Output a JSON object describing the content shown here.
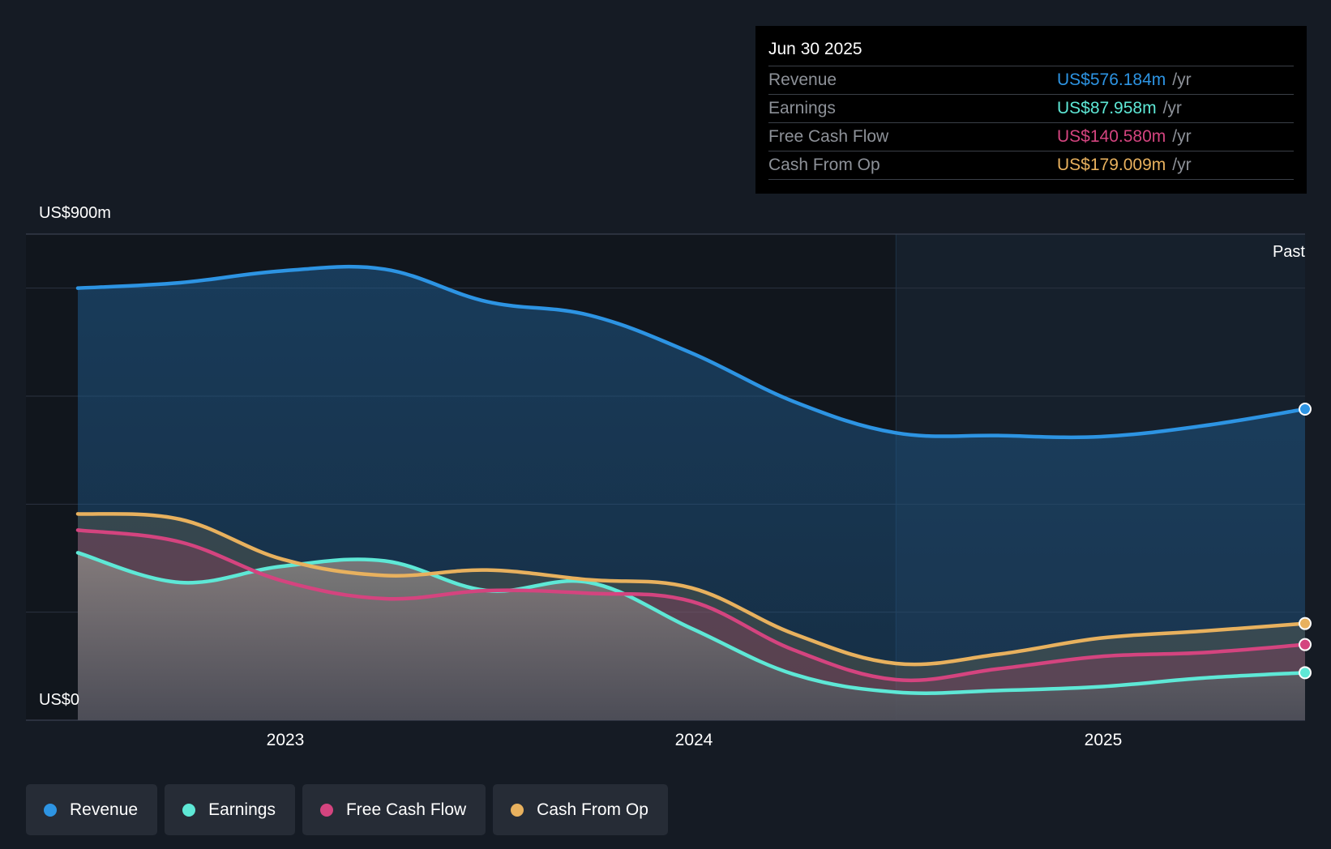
{
  "tooltip": {
    "date": "Jun 30 2025",
    "rows": [
      {
        "label": "Revenue",
        "value": "US$576.184m",
        "unit": "/yr",
        "color": "#2d94e3"
      },
      {
        "label": "Earnings",
        "value": "US$87.958m",
        "unit": "/yr",
        "color": "#5ee8d6"
      },
      {
        "label": "Free Cash Flow",
        "value": "US$140.580m",
        "unit": "/yr",
        "color": "#d4447f"
      },
      {
        "label": "Cash From Op",
        "value": "US$179.009m",
        "unit": "/yr",
        "color": "#e8b15e"
      }
    ]
  },
  "past_label": "Past",
  "chart_data": {
    "type": "area",
    "y_top_label": "US$900m",
    "y_bottom_label": "US$0",
    "ylim": [
      0,
      900
    ],
    "xlim": [
      2022.5,
      2025.5
    ],
    "x_ticks": [
      {
        "value": 2023,
        "label": "2023"
      },
      {
        "value": 2024,
        "label": "2024"
      },
      {
        "value": 2025,
        "label": "2025"
      }
    ],
    "past_from": 2024.5,
    "grid": true,
    "series": [
      {
        "name": "Revenue",
        "color": "#2d94e3",
        "x": [
          2022.5,
          2022.75,
          2023.0,
          2023.25,
          2023.5,
          2023.75,
          2024.0,
          2024.25,
          2024.5,
          2024.75,
          2025.0,
          2025.25,
          2025.5
        ],
        "y": [
          800,
          810,
          832,
          835,
          775,
          750,
          680,
          590,
          532,
          527,
          525,
          545,
          576
        ]
      },
      {
        "name": "Earnings",
        "color": "#5ee8d6",
        "x": [
          2022.5,
          2022.75,
          2023.0,
          2023.25,
          2023.5,
          2023.75,
          2024.0,
          2024.25,
          2024.5,
          2024.75,
          2025.0,
          2025.25,
          2025.5
        ],
        "y": [
          310,
          255,
          285,
          295,
          240,
          255,
          170,
          85,
          52,
          55,
          62,
          78,
          88
        ]
      },
      {
        "name": "Free Cash Flow",
        "color": "#d4447f",
        "x": [
          2022.5,
          2022.75,
          2023.0,
          2023.25,
          2023.5,
          2023.75,
          2024.0,
          2024.25,
          2024.5,
          2024.75,
          2025.0,
          2025.25,
          2025.5
        ],
        "y": [
          352,
          330,
          258,
          225,
          240,
          235,
          220,
          130,
          75,
          95,
          118,
          125,
          140
        ]
      },
      {
        "name": "Cash From Op",
        "color": "#e8b15e",
        "x": [
          2022.5,
          2022.75,
          2023.0,
          2023.25,
          2023.5,
          2023.75,
          2024.0,
          2024.25,
          2024.5,
          2024.75,
          2025.0,
          2025.25,
          2025.5
        ],
        "y": [
          382,
          372,
          298,
          268,
          278,
          260,
          245,
          160,
          105,
          122,
          152,
          165,
          179
        ]
      }
    ]
  },
  "legend": [
    {
      "label": "Revenue",
      "color": "#2d94e3"
    },
    {
      "label": "Earnings",
      "color": "#5ee8d6"
    },
    {
      "label": "Free Cash Flow",
      "color": "#d4447f"
    },
    {
      "label": "Cash From Op",
      "color": "#e8b15e"
    }
  ]
}
